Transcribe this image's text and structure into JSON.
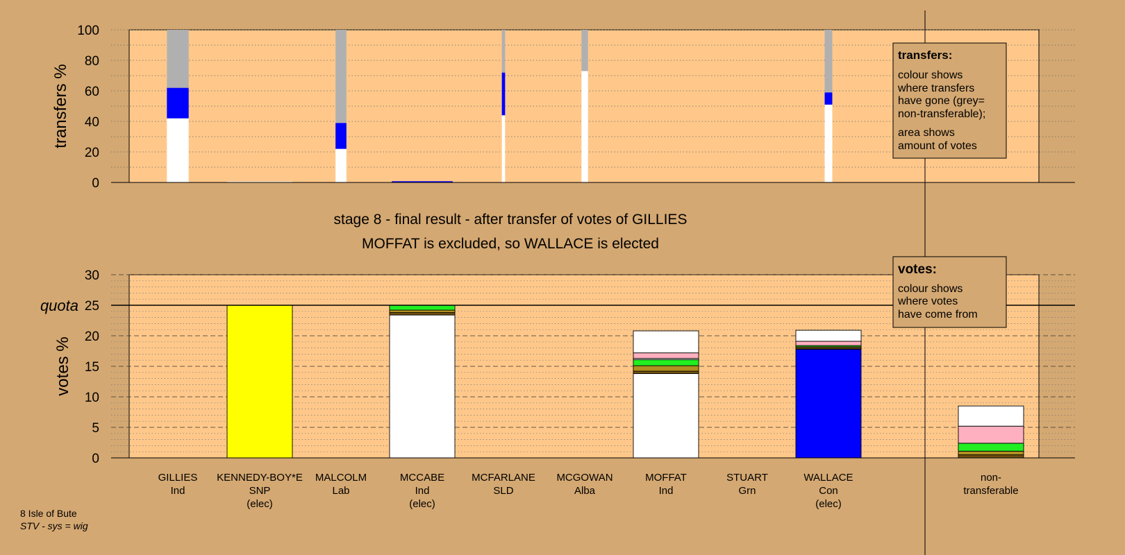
{
  "stage_title": "stage 8 - final result - after transfer of votes of GILLIES",
  "stage_subtitle": "MOFFAT is excluded, so WALLACE is elected",
  "footer": {
    "line1": "8 Isle of Bute",
    "line2": "STV - sys = wig"
  },
  "legend_transfers": {
    "title": "transfers:",
    "lines": [
      "colour shows",
      "where transfers",
      "have gone (grey=",
      "non-transferable);",
      "area shows",
      "amount of votes"
    ]
  },
  "legend_votes": {
    "title": "votes:",
    "lines": [
      "colour shows",
      "where votes",
      "have come from"
    ]
  },
  "quota_label": "quota",
  "colors": {
    "background": "#d4a872",
    "plot_bg": "#ffc88a",
    "blue": "#0000ff",
    "yellow": "#ffff00",
    "grey": "#b0b0b0",
    "green": "#22ee22",
    "pink": "#ffb0c0",
    "olive": "#b09020",
    "brown": "#705010",
    "white": "#ffffff"
  },
  "chart_data": [
    {
      "type": "bar",
      "stacked": true,
      "ylabel": "transfers %",
      "ylim": [
        0,
        100
      ],
      "yticks": [
        0,
        20,
        40,
        60,
        80,
        100
      ],
      "grid": true,
      "categories": [
        "GILLIES",
        "KENNEDY-BOY*E",
        "MALCOLM",
        "MCCABE",
        "MCFARLANE",
        "MCGOWAN",
        "MOFFAT",
        "STUART",
        "WALLACE"
      ],
      "bars": [
        {
          "candidate": "GILLIES",
          "width": 1.0,
          "segments": [
            {
              "color": "white",
              "value": 42
            },
            {
              "color": "blue",
              "value": 20
            },
            {
              "color": "grey",
              "value": 38
            }
          ]
        },
        {
          "candidate": "KENNEDY-BOY*E",
          "width": 3.0,
          "segments": [
            {
              "color": "white",
              "value": 0.6
            }
          ]
        },
        {
          "candidate": "MALCOLM",
          "width": 0.5,
          "segments": [
            {
              "color": "white",
              "value": 22
            },
            {
              "color": "blue",
              "value": 17
            },
            {
              "color": "grey",
              "value": 61
            }
          ]
        },
        {
          "candidate": "MCCABE",
          "width": 2.8,
          "segments": [
            {
              "color": "blue",
              "value": 0.8
            }
          ]
        },
        {
          "candidate": "MCFARLANE",
          "width": 0.15,
          "segments": [
            {
              "color": "white",
              "value": 44
            },
            {
              "color": "blue",
              "value": 28
            },
            {
              "color": "grey",
              "value": 28
            }
          ]
        },
        {
          "candidate": "MCGOWAN",
          "width": 0.3,
          "segments": [
            {
              "color": "white",
              "value": 73
            },
            {
              "color": "grey",
              "value": 27
            }
          ]
        },
        {
          "candidate": "WALLACE",
          "width": 0.35,
          "segments": [
            {
              "color": "white",
              "value": 51
            },
            {
              "color": "blue",
              "value": 8
            },
            {
              "color": "grey",
              "value": 41
            }
          ]
        }
      ]
    },
    {
      "type": "bar",
      "stacked": true,
      "ylabel": "votes %",
      "ylim": [
        0,
        30
      ],
      "yticks": [
        0,
        5,
        10,
        15,
        20,
        25,
        30
      ],
      "quota": 25,
      "grid": true,
      "candidates": [
        {
          "name": "GILLIES",
          "party": "Ind",
          "status": "",
          "segments": []
        },
        {
          "name": "KENNEDY-BOY*E",
          "party": "SNP",
          "status": "(elec)",
          "segments": [
            {
              "color": "yellow",
              "value": 25
            }
          ]
        },
        {
          "name": "MALCOLM",
          "party": "Lab",
          "status": "",
          "segments": []
        },
        {
          "name": "MCCABE",
          "party": "Ind",
          "status": "(elec)",
          "segments": [
            {
              "color": "white",
              "value": 23.4
            },
            {
              "color": "brown",
              "value": 0.4
            },
            {
              "color": "olive",
              "value": 0.4
            },
            {
              "color": "green",
              "value": 0.8
            }
          ]
        },
        {
          "name": "MCFARLANE",
          "party": "SLD",
          "status": "",
          "segments": []
        },
        {
          "name": "MCGOWAN",
          "party": "Alba",
          "status": "",
          "segments": []
        },
        {
          "name": "MOFFAT",
          "party": "Ind",
          "status": "",
          "segments": [
            {
              "color": "white",
              "value": 13.8
            },
            {
              "color": "brown",
              "value": 0.4
            },
            {
              "color": "olive",
              "value": 0.9
            },
            {
              "color": "green",
              "value": 1.0
            },
            {
              "color": "white",
              "value": 0.2
            },
            {
              "color": "pink",
              "value": 0.9
            },
            {
              "color": "white",
              "value": 3.6
            }
          ]
        },
        {
          "name": "STUART",
          "party": "Grn",
          "status": "",
          "segments": []
        },
        {
          "name": "WALLACE",
          "party": "Con",
          "status": "(elec)",
          "segments": [
            {
              "color": "blue",
              "value": 17.8
            },
            {
              "color": "brown",
              "value": 0.2
            },
            {
              "color": "olive",
              "value": 0.2
            },
            {
              "color": "green",
              "value": 0.2
            },
            {
              "color": "pink",
              "value": 0.7
            },
            {
              "color": "white",
              "value": 1.8
            }
          ]
        }
      ],
      "nontransferable": {
        "label_lines": [
          "non-",
          "transferable"
        ],
        "segments": [
          {
            "color": "brown",
            "value": 0.5
          },
          {
            "color": "olive",
            "value": 0.6
          },
          {
            "color": "green",
            "value": 1.3
          },
          {
            "color": "pink",
            "value": 2.8
          },
          {
            "color": "white",
            "value": 3.3
          }
        ]
      }
    }
  ]
}
